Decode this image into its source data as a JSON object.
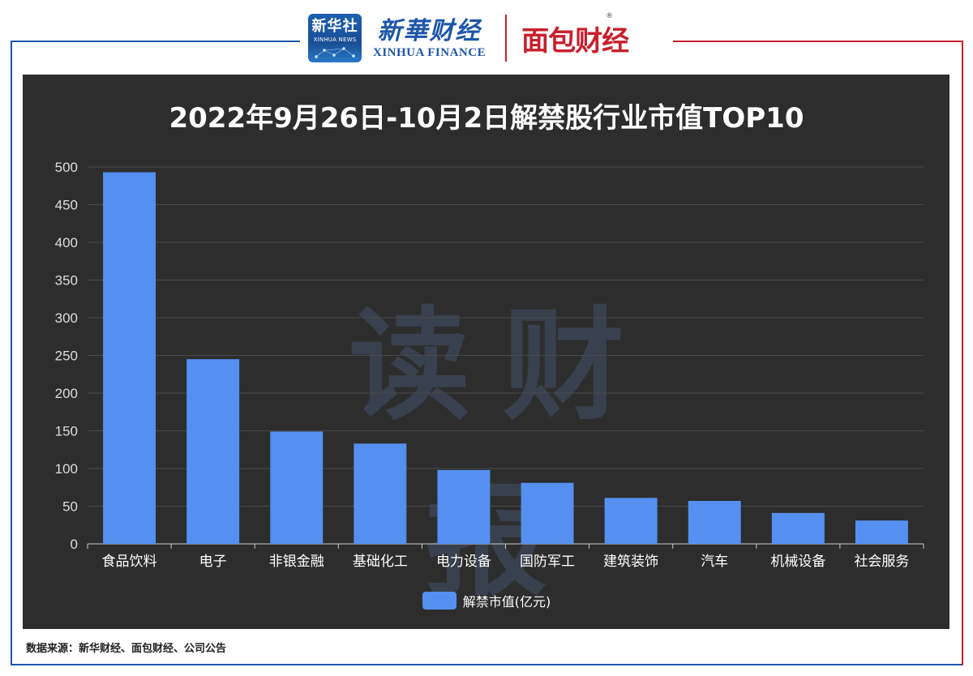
{
  "header": {
    "xinhua_logo_cn": "新华社",
    "xinhua_logo_en": "XINHUA NEWS",
    "finance_cn": "新華财经",
    "finance_en": "XINHUA FINANCE",
    "mianbao": "面包财经",
    "reg_mark": "®"
  },
  "watermark": "读财报",
  "colors": {
    "bar": "#5590f0",
    "panel": "#2d2d2d",
    "blue_rule": "#1d56a8",
    "red_rule": "#c8202d"
  },
  "chart_data": {
    "type": "bar",
    "title": "2022年9月26日-10月2日解禁股行业市值TOP10",
    "categories": [
      "食品饮料",
      "电子",
      "非银金融",
      "基础化工",
      "电力设备",
      "国防军工",
      "建筑装饰",
      "汽车",
      "机械设备",
      "社会服务"
    ],
    "series": [
      {
        "name": "解禁市值(亿元)",
        "values": [
          493,
          245,
          149,
          133,
          98,
          81,
          61,
          57,
          41,
          31
        ]
      }
    ],
    "ylim": [
      0,
      500
    ],
    "yticks": [
      0,
      50,
      100,
      150,
      200,
      250,
      300,
      350,
      400,
      450,
      500
    ],
    "xlabel": "",
    "ylabel": "",
    "legend_position": "bottom-center",
    "grid": true
  },
  "footer": {
    "source": "数据来源：新华财经、面包财经、公司公告"
  }
}
